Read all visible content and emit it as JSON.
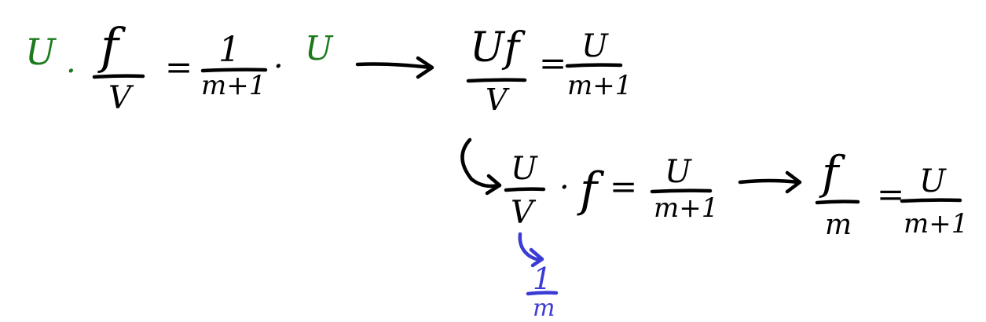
{
  "colors": {
    "black": "#000000",
    "green": "#1b7a1b",
    "blue": "#3b3bd6"
  },
  "eq1": {
    "u_left": "U",
    "dot_left": "·",
    "frac_num": "f",
    "frac_den": "V",
    "equals": "=",
    "rhs_num": "1",
    "rhs_den": "m+1",
    "dot_right": "·",
    "u_right": "U"
  },
  "eq2": {
    "frac_num": "Uf",
    "frac_den": "V",
    "equals": "=",
    "rhs_num": "U",
    "rhs_den": "m+1"
  },
  "eq3": {
    "frac_num": "U",
    "frac_den": "V",
    "dot": "·",
    "f": "f",
    "equals": "=",
    "rhs_num": "U",
    "rhs_den": "m+1"
  },
  "eq4": {
    "frac_num": "f",
    "frac_den": "m",
    "equals": "=",
    "rhs_num": "U",
    "rhs_den": "m+1"
  },
  "note": {
    "num": "1",
    "den": "m"
  }
}
